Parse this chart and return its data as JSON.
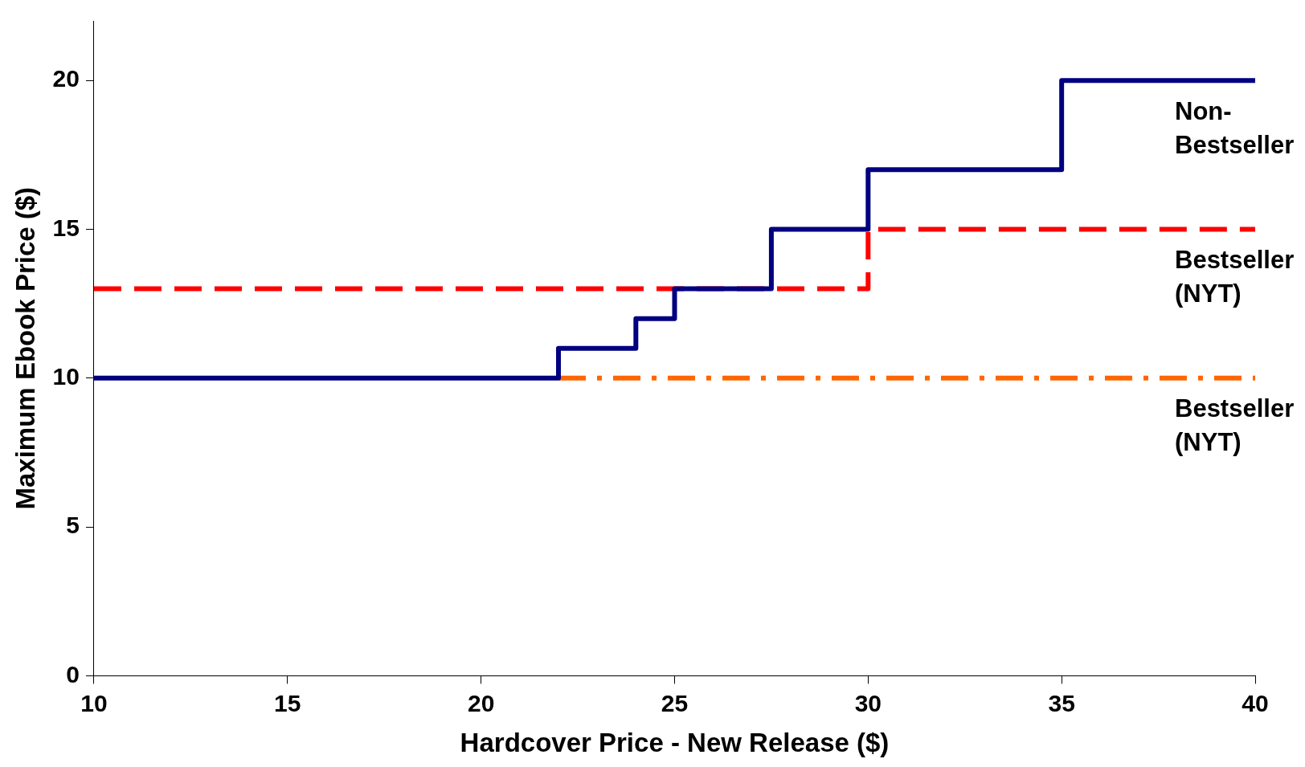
{
  "chart_data": {
    "type": "step",
    "xlabel": "Hardcover Price - New Release ($)",
    "ylabel": "Maximum Ebook Price ($)",
    "xlim": [
      10,
      40
    ],
    "xticks": [
      10,
      15,
      20,
      25,
      30,
      35,
      40
    ],
    "ylim": [
      0,
      22
    ],
    "yticks": [
      0,
      5,
      10,
      15,
      20
    ],
    "grid": false,
    "legend": false,
    "series": [
      {
        "name": "Non-Bestseller",
        "color": "#000080",
        "line_style": "solid",
        "x": [
          10,
          22,
          24,
          25,
          27.5,
          30,
          35,
          40
        ],
        "values": [
          10,
          11,
          12,
          13,
          15,
          17,
          20,
          20
        ]
      },
      {
        "name": "Bestseller (NYT)",
        "color": "#ff0000",
        "line_style": "dashed",
        "x": [
          10,
          30,
          40
        ],
        "values": [
          13,
          15,
          15
        ]
      },
      {
        "name": "Bestseller (NYT)",
        "color": "#ff6600",
        "line_style": "dashdot",
        "x": [
          22,
          40
        ],
        "values": [
          10,
          10
        ]
      }
    ]
  }
}
